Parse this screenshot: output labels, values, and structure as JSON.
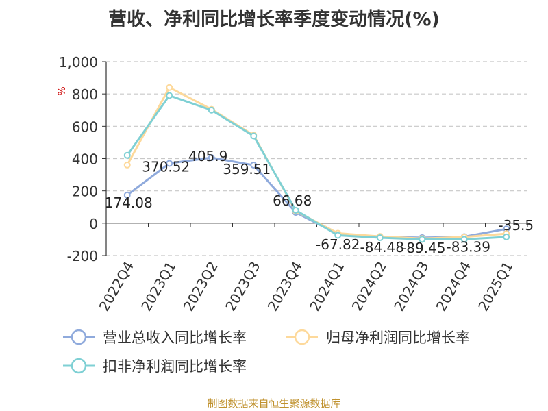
{
  "chart_data": {
    "type": "line",
    "title": "营收、净利同比增长率季度变动情况(%)",
    "ylabel": "%",
    "xlabel": "",
    "categories": [
      "2022Q4",
      "2023Q1",
      "2023Q2",
      "2023Q3",
      "2023Q4",
      "2024Q1",
      "2024Q2",
      "2024Q3",
      "2024Q4",
      "2025Q1"
    ],
    "ylim": [
      -200,
      1000
    ],
    "yticks": [
      1000,
      800,
      600,
      400,
      200,
      0,
      -200
    ],
    "ytick_labels": [
      "1,000",
      "800",
      "600",
      "400",
      "200",
      "0",
      "-200"
    ],
    "grid": "horizontal-dashed",
    "legend_position": "bottom",
    "series": [
      {
        "name": "营业总收入同比增长率",
        "color": "#8faadc",
        "values": [
          174.08,
          370.52,
          405.9,
          359.51,
          66.68,
          -67.82,
          -84.48,
          -89.45,
          -83.39,
          -35.5
        ],
        "data_labels": [
          "174.08",
          "370.52",
          "405.9",
          "359.51",
          "66.68",
          "-67.82",
          "-84.48",
          "-89.45",
          "-83.39",
          "-35.5"
        ]
      },
      {
        "name": "归母净利润同比增长率",
        "color": "#fdd99b",
        "values": [
          360,
          840,
          705,
          545,
          75,
          -62,
          -82,
          -95,
          -85,
          -65
        ]
      },
      {
        "name": "扣非净利润同比增长率",
        "color": "#7fd0d4",
        "values": [
          420,
          790,
          700,
          540,
          80,
          -75,
          -90,
          -100,
          -100,
          -85
        ]
      }
    ]
  },
  "source": "制图数据来自恒生聚源数据库"
}
